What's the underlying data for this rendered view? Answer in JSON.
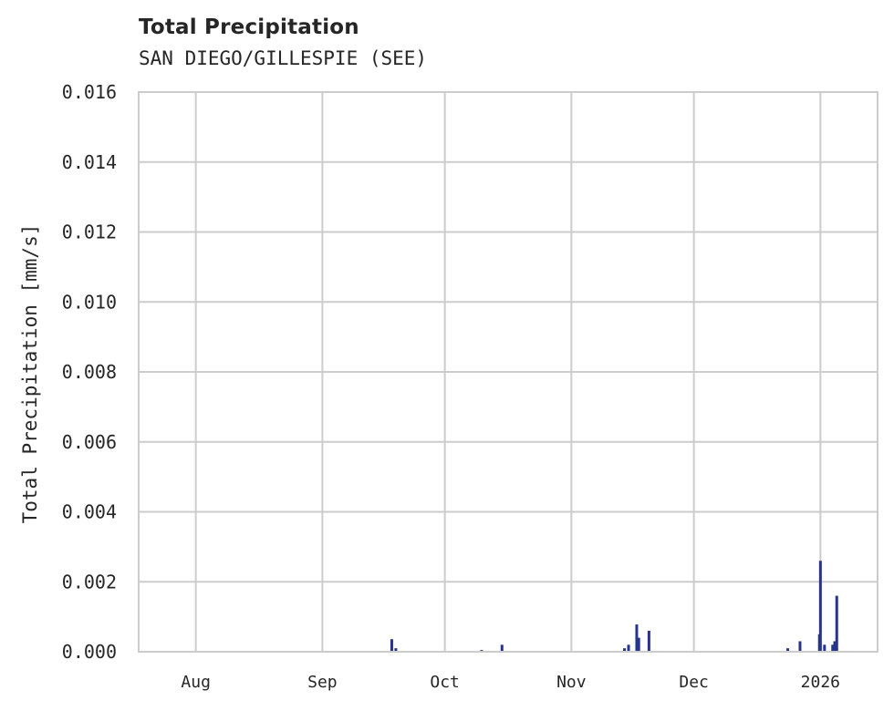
{
  "chart_data": {
    "type": "bar",
    "title": "Total Precipitation",
    "subtitle": "SAN DIEGO/GILLESPIE (SEE)",
    "xlabel": "",
    "ylabel": "Total Precipitation [mm/s]",
    "ylim": [
      0.0,
      0.016
    ],
    "yticks": [
      "0.000",
      "0.002",
      "0.004",
      "0.006",
      "0.008",
      "0.010",
      "0.012",
      "0.014",
      "0.016"
    ],
    "xticks": [
      "Aug",
      "Sep",
      "Oct",
      "Nov",
      "Dec",
      "2026"
    ],
    "xlim": [
      "2025-07-18",
      "2026-01-15"
    ],
    "grid": true,
    "legend": null,
    "bar_color": "#27348b",
    "x": [
      "2025-09-18",
      "2025-09-19",
      "2025-10-10",
      "2025-10-15",
      "2025-11-14",
      "2025-11-15",
      "2025-11-17",
      "2025-11-17T12",
      "2025-11-20",
      "2025-12-24",
      "2025-12-27",
      "2025-12-31T18",
      "2026-01-01",
      "2026-01-02",
      "2026-01-04",
      "2026-01-04T12",
      "2026-01-05"
    ],
    "values": [
      0.00036,
      0.0001,
      5e-05,
      0.0002,
      0.0001,
      0.0002,
      0.00078,
      0.0004,
      0.0006,
      0.0001,
      0.0003,
      0.0005,
      0.0026,
      0.0002,
      0.0002,
      0.0003,
      0.0016
    ]
  }
}
